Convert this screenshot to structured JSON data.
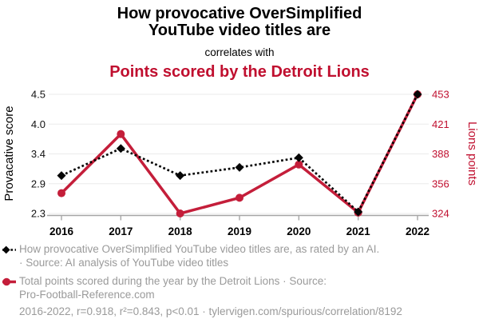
{
  "header": {
    "title_line1": "How provocative OverSimplified",
    "title_line2": "YouTube video titles are",
    "connector": "correlates with",
    "subtitle": "Points scored by the Detroit Lions"
  },
  "colors": {
    "accent_red": "#c00f2f",
    "line_red": "#c41e3a",
    "series_black": "#050505",
    "muted_text": "#9a9a9a",
    "grid": "#ebebeb",
    "axis": "#a6a6a6"
  },
  "chart_data": {
    "type": "line",
    "title": "How provocative OverSimplified YouTube video titles are correlates with Points scored by the Detroit Lions",
    "x": [
      2016,
      2017,
      2018,
      2019,
      2020,
      2021,
      2022
    ],
    "x_labels": [
      "2016",
      "2017",
      "2018",
      "2019",
      "2020",
      "2021",
      "2022"
    ],
    "series": [
      {
        "name": "How provocative OverSimplified YouTube video titles are, as rated by an AI.",
        "axis": "left",
        "color": "#050505",
        "style": "dotted",
        "marker": "diamond",
        "values": [
          3.0,
          3.5,
          3.0,
          3.15,
          3.33,
          2.33,
          4.5
        ]
      },
      {
        "name": "Total points scored during the year by the Detroit Lions",
        "axis": "right",
        "color": "#c41e3a",
        "style": "solid",
        "marker": "circle",
        "values": [
          346,
          410,
          324,
          341,
          377,
          325,
          453
        ]
      }
    ],
    "left_axis": {
      "label": "Provacative score",
      "tick_labels": [
        "4.5",
        "4.0",
        "3.4",
        "2.9",
        "2.3"
      ],
      "range": [
        2.3,
        4.5
      ]
    },
    "right_axis": {
      "label": "Lions points",
      "tick_labels": [
        "453",
        "421",
        "388",
        "356",
        "324"
      ],
      "range": [
        324,
        453
      ]
    },
    "grid": true,
    "legend_position": "bottom"
  },
  "legend": {
    "items": [
      {
        "lines": [
          "How provocative OverSimplified YouTube video titles are, as rated by an AI.",
          "· Source: AI analysis of YouTube video titles"
        ]
      },
      {
        "lines": [
          "Total points scored during the year by the Detroit Lions · Source:",
          "Pro-Football-Reference.com"
        ]
      }
    ]
  },
  "footer": {
    "text": "2016-2022, r=0.918, r²=0.843, p<0.01 · tylervigen.com/spurious/correlation/8192"
  }
}
